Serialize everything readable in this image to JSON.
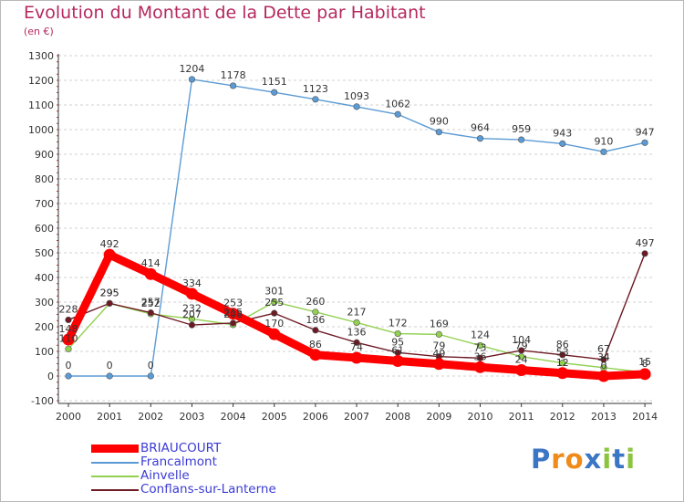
{
  "colors": {
    "title": "#b5285f",
    "axis": "#333333",
    "grid": "#d0d0d0",
    "legend_text": "#3b3bd6"
  },
  "chart_data": {
    "type": "line",
    "title": "Evolution du Montant de la Dette par Habitant",
    "subtitle": "(en €)",
    "xlabel": "",
    "ylabel": "",
    "x": [
      2000,
      2001,
      2002,
      2003,
      2004,
      2005,
      2006,
      2007,
      2008,
      2009,
      2010,
      2011,
      2012,
      2013,
      2014
    ],
    "ylim": [
      -100,
      1300
    ],
    "yticks": [
      -100,
      0,
      100,
      200,
      300,
      400,
      500,
      600,
      700,
      800,
      900,
      1000,
      1100,
      1200,
      1300
    ],
    "grid": "horizontal dashed",
    "legend_position": "bottom-left",
    "series": [
      {
        "name": "BRIAUCOURT",
        "color": "#ff0000",
        "values": [
          148,
          492,
          414,
          334,
          253,
          170,
          86,
          74,
          61,
          49,
          36,
          24,
          12,
          0,
          8
        ],
        "show_labels": true
      },
      {
        "name": "Francalmont",
        "color": "#5b9bd5",
        "values": [
          0,
          0,
          0,
          1204,
          1178,
          1151,
          1123,
          1093,
          1062,
          990,
          964,
          959,
          943,
          910,
          947
        ],
        "show_labels": true
      },
      {
        "name": "Ainvelle",
        "color": "#92d050",
        "values": [
          110,
          295,
          252,
          232,
          208,
          301,
          260,
          217,
          172,
          169,
          124,
          79,
          53,
          34,
          15
        ],
        "show_labels": true
      },
      {
        "name": "Conflans-sur-Lanterne",
        "color": "#6d1a24",
        "values": [
          228,
          295,
          257,
          207,
          215,
          255,
          186,
          136,
          95,
          79,
          73,
          104,
          86,
          67,
          497
        ],
        "show_labels": true
      }
    ]
  },
  "logo": {
    "text": "Proxiti",
    "letters": [
      "P",
      "r",
      "o",
      "x",
      "i",
      "t",
      "i"
    ],
    "colors": [
      "#3a76c4",
      "#ee8b1a",
      "#ee8b1a",
      "#3a76c4",
      "#8bc53f",
      "#3a76c4",
      "#8bc53f"
    ]
  }
}
